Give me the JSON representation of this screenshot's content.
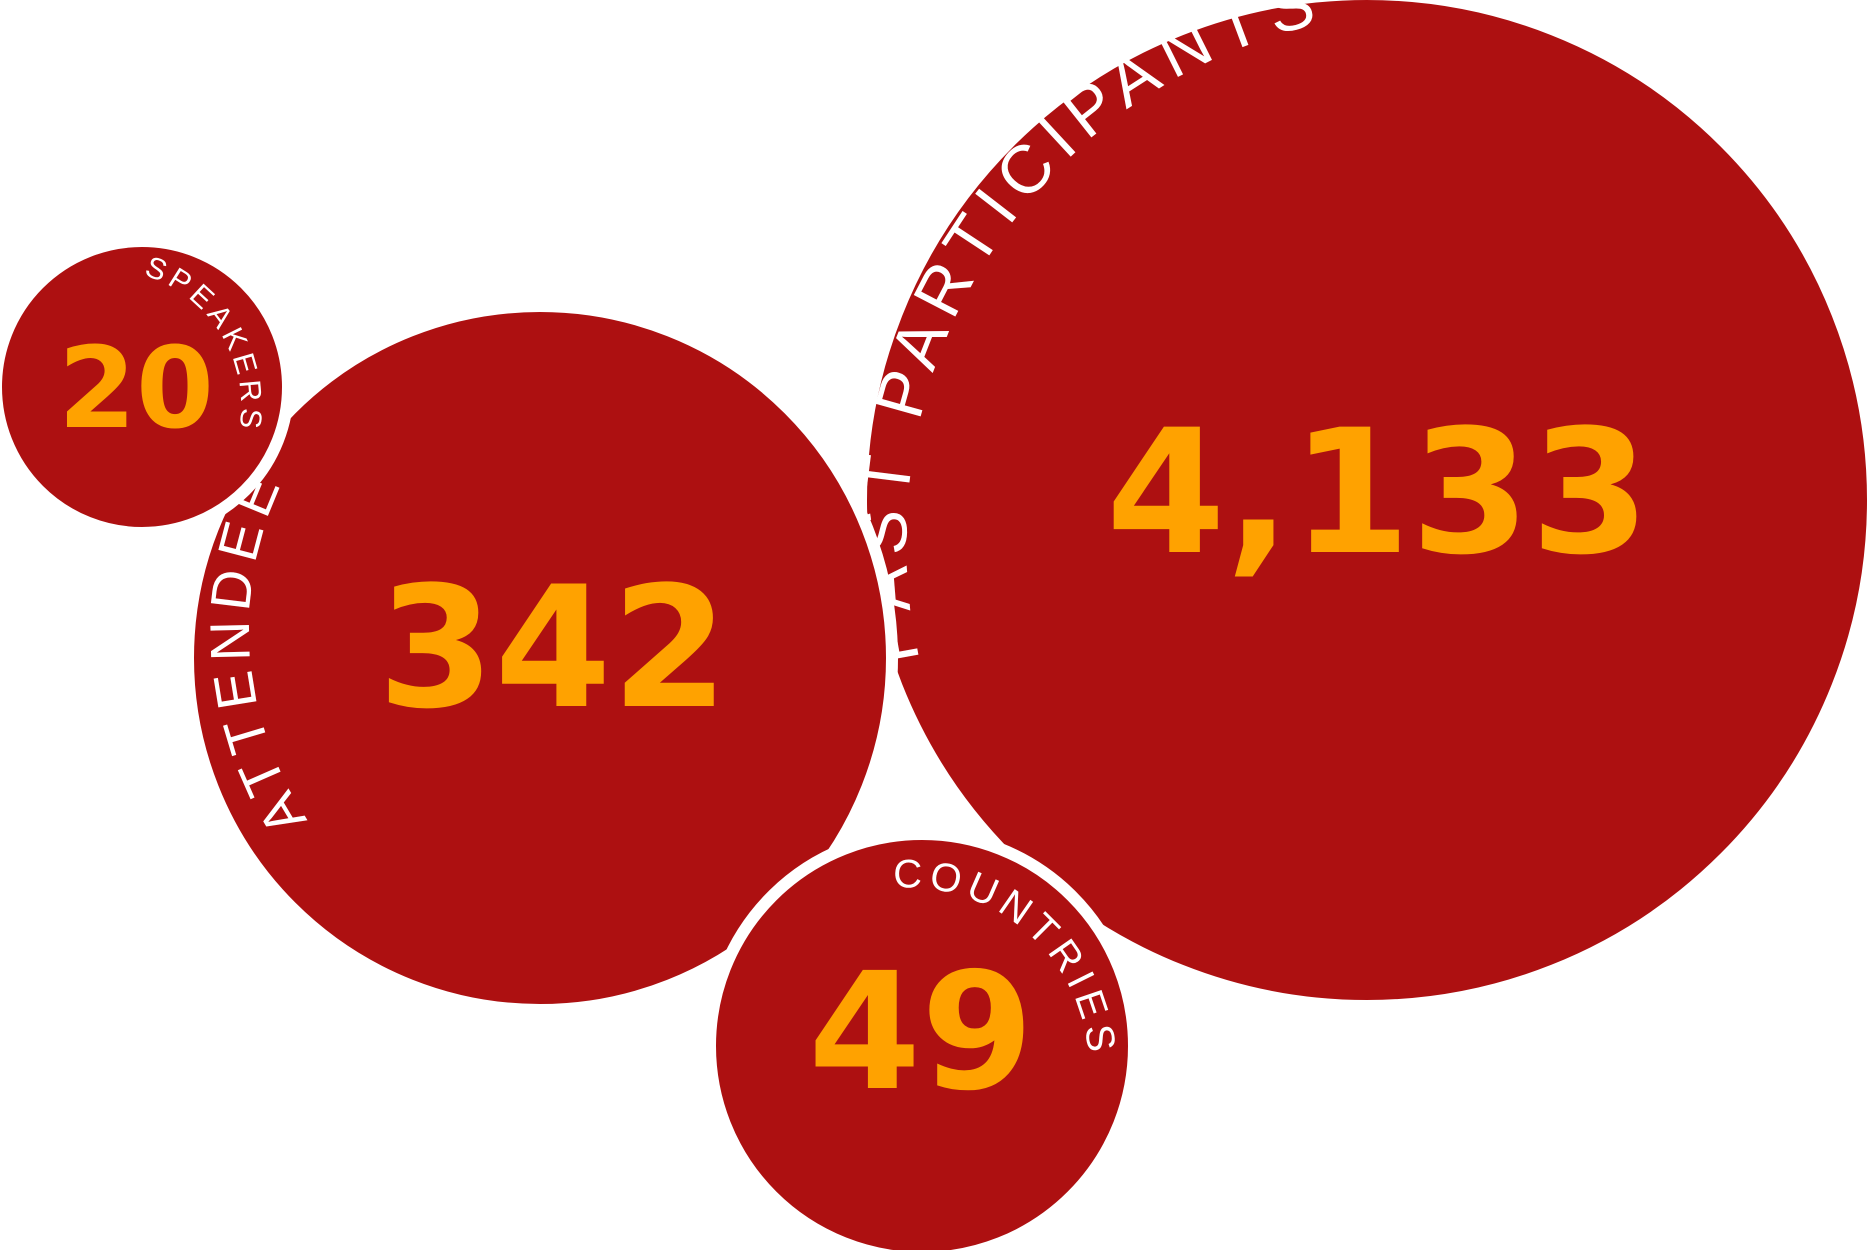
{
  "colors": {
    "bubble": "#AD1011",
    "number": "#FFA200",
    "label": "#FFFFFF",
    "background": "#FFFFFF"
  },
  "stats": {
    "past_participants": {
      "value": "4,133",
      "label": "PAST PARTICIPANTS"
    },
    "attendees": {
      "value": "342",
      "label": "ATTENDEES"
    },
    "speakers": {
      "value": "20",
      "label": "SPEAKERS"
    },
    "countries": {
      "value": "49",
      "label": "COUNTRIES"
    }
  }
}
